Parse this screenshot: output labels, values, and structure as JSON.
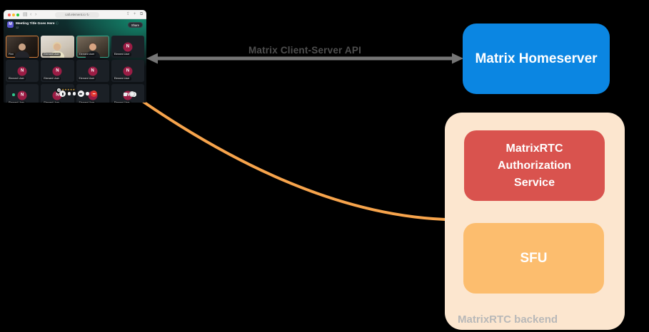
{
  "diagram": {
    "api_arrow_label": "Matrix Client-Server API",
    "arrow_color": "#757575",
    "api_label_color": "#4e4e4e",
    "connection_color": "#f7a44c",
    "homeserver": {
      "label": "Matrix Homeserver",
      "color": "#0b86e2",
      "text_color": "#ffffff"
    },
    "backend": {
      "label": "MatrixRTC backend",
      "container_color": "#fce6cf",
      "label_color": "#b8b8b8"
    },
    "auth_service": {
      "label": "MatrixRTC Authorization Service",
      "color": "#d9534e",
      "text_color": "#ffffff"
    },
    "sfu": {
      "label": "SFU",
      "color": "#fcbd6e",
      "text_color": "#ffffff"
    }
  },
  "browser": {
    "url": "call.element.io",
    "traffic_lights": {
      "close": "#ff5f57",
      "minimize": "#febc2e",
      "zoom": "#28c840"
    },
    "back_glyph": "‹",
    "forward_glyph": "›",
    "sidebar_glyph": "▤",
    "reload_glyph": "↻",
    "share_glyph": "⇪",
    "new_tab_glyph": "+",
    "tabs_glyph": "⧉"
  },
  "call_app": {
    "room_avatar_letter": "M",
    "room_title": "Meeting Title Goes Here",
    "info_glyph": "ⓘ",
    "participant_count": "12",
    "share_button_label": "Share",
    "avatar_letter": "N",
    "avatar_color": "#9b1d45",
    "reactions_plus_glyph": "+",
    "reactions_glyphs": "★★★★★",
    "participants": [
      {
        "name": "Finn",
        "kind": "video",
        "variant": "v1",
        "border": "#d8813c"
      },
      {
        "name": "Element User",
        "kind": "video",
        "variant": "v2"
      },
      {
        "name": "Element User",
        "kind": "video",
        "variant": "v3",
        "border": "#35a98c"
      },
      {
        "name": "Element User",
        "kind": "avatar"
      },
      {
        "name": "Element User",
        "kind": "avatar"
      },
      {
        "name": "Element User",
        "kind": "avatar"
      },
      {
        "name": "Element User",
        "kind": "avatar"
      },
      {
        "name": "Element User",
        "kind": "avatar"
      },
      {
        "name": "Element User",
        "kind": "avatar",
        "presence": true
      },
      {
        "name": "Element User",
        "kind": "avatar"
      },
      {
        "name": "Element User",
        "kind": "avatar"
      },
      {
        "name": "Element User",
        "kind": "avatar",
        "hand": true
      }
    ]
  }
}
